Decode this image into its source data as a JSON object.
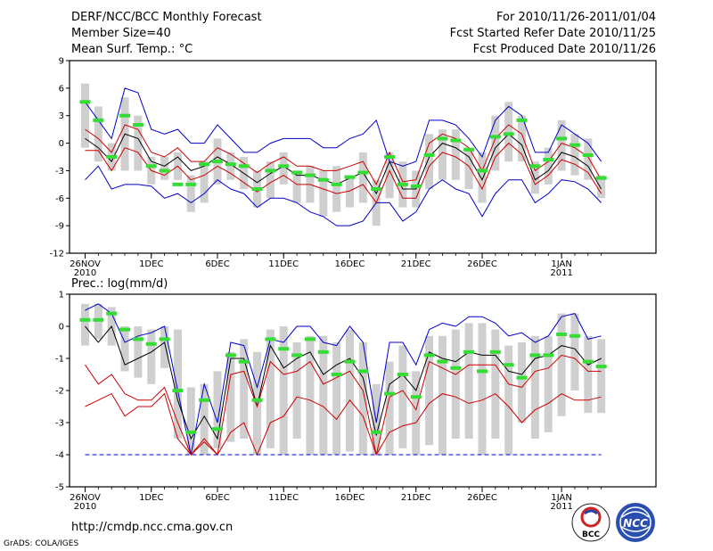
{
  "header": {
    "title": "DERF/NCC/BCC Monthly Forecast",
    "member_size": "Member Size=40",
    "variable": "Mean Surf. Temp.: °C",
    "period": "For 2010/11/26-2011/01/04",
    "started": "Fcst Started Refer Date 2010/11/25",
    "produced": "Fcst Produced Date 2010/11/26"
  },
  "precip_label": "Prec.: log(mm/d)",
  "footer": {
    "url": "http://cmdp.ncc.cma.gov.cn",
    "credit": "GrADS: COLA/IGES"
  },
  "logos": {
    "bcc": "BCC",
    "ncc": "NCC"
  },
  "colors": {
    "bar": "#cfcfcf",
    "green": "#33dd33",
    "envelope": "#0000cc",
    "spread": "#cc0000",
    "mean": "#000000"
  },
  "chart_data": [
    {
      "type": "line",
      "title": "Mean Surf. Temp.: °C",
      "x_tick_labels": [
        "26NOV",
        "1DEC",
        "6DEC",
        "11DEC",
        "16DEC",
        "21DEC",
        "26DEC",
        "1JAN"
      ],
      "x_tick_days": [
        0,
        5,
        10,
        15,
        20,
        25,
        30,
        36
      ],
      "x_sub_labels": [
        {
          "day": 0,
          "text": "2010"
        },
        {
          "day": 36,
          "text": "2011"
        }
      ],
      "ylim": [
        -12,
        9
      ],
      "yticks": [
        -12,
        -9,
        -6,
        -3,
        0,
        3,
        6,
        9
      ],
      "series": [
        {
          "name": "ensemble max",
          "color": "#0000cc",
          "values": [
            -4,
            -2.5,
            -5,
            -4.5,
            -4.5,
            -4.7,
            -6,
            -5.5,
            -6.5,
            -5.5,
            -4,
            -5,
            -5.5,
            -7,
            -6,
            -6,
            -6.5,
            -7.5,
            -8,
            -9,
            -9,
            -8.5,
            -6.5,
            -6.5,
            -8.5,
            -7.5,
            -5,
            -4,
            -5,
            -5.5,
            -8,
            -5.5,
            -4,
            -4,
            -6.5,
            -5.5,
            -4,
            -4.2,
            -5,
            -6.5
          ]
        },
        {
          "name": "upper spread",
          "color": "#0000cc",
          "values": [
            4.5,
            2.5,
            0.5,
            6,
            5.5,
            1.5,
            1,
            1.5,
            0,
            0,
            2,
            0.5,
            -1,
            -1,
            0,
            0.5,
            0.5,
            0.5,
            -0.5,
            -0.5,
            0.5,
            1,
            2.5,
            -2,
            -2.5,
            -2,
            2.5,
            2.5,
            2,
            0.5,
            -1.5,
            2.5,
            4,
            3,
            -1,
            -1,
            2,
            1,
            0,
            -2
          ]
        },
        {
          "name": "ensemble upper",
          "color": "#cc0000",
          "values": [
            1.5,
            0.5,
            -1,
            2,
            1.5,
            -1,
            -1.5,
            -0.5,
            -2,
            -2,
            -0.5,
            -1.2,
            -2.2,
            -3.2,
            -2.2,
            -1.5,
            -2.5,
            -2.5,
            -3,
            -3,
            -2.5,
            -2,
            -4.5,
            -1,
            -4.2,
            -4,
            0,
            1,
            0.5,
            -0.5,
            -3,
            0.5,
            2,
            1,
            -3,
            -2,
            0,
            -0.5,
            -1.5,
            -4
          ]
        },
        {
          "name": "ensemble mean",
          "color": "#000000",
          "values": [
            0.5,
            -0.5,
            -2,
            1,
            0.5,
            -2,
            -2.5,
            -1.5,
            -3,
            -2.5,
            -1.5,
            -2.3,
            -3.3,
            -4.3,
            -3.3,
            -2.5,
            -3.5,
            -3.5,
            -4,
            -4.5,
            -3.8,
            -3.2,
            -5.5,
            -2,
            -5,
            -5,
            -1.5,
            0,
            -0.5,
            -1.5,
            -4,
            -0.5,
            1,
            -0.2,
            -4,
            -3,
            -1,
            -1.5,
            -2.5,
            -5
          ]
        },
        {
          "name": "ensemble lower",
          "color": "#cc0000",
          "values": [
            -0.8,
            -0.8,
            -3,
            -0.5,
            -1,
            -3,
            -3.5,
            -2.5,
            -4,
            -3.5,
            -2.5,
            -3.3,
            -4.3,
            -5.3,
            -4.3,
            -3.5,
            -4.5,
            -4.5,
            -5,
            -5.5,
            -5.2,
            -4.5,
            -6.5,
            -3,
            -6,
            -6,
            -2.5,
            -1,
            -1.5,
            -2.5,
            -5,
            -1.5,
            0,
            -1.2,
            -4.5,
            -3.5,
            -1.8,
            -2.3,
            -3.2,
            -5.5
          ]
        }
      ],
      "bars": [
        [
          -0.5,
          6.5
        ],
        [
          -2,
          4
        ],
        [
          -3,
          0
        ],
        [
          -3,
          5
        ],
        [
          -3,
          3
        ],
        [
          -4.5,
          -1.5
        ],
        [
          -4,
          -1.5
        ],
        [
          -4,
          -1
        ],
        [
          -7.5,
          -3.5
        ],
        [
          -6.5,
          -2
        ],
        [
          -4.5,
          0.5
        ],
        [
          -4,
          -1
        ],
        [
          -5,
          -1.5
        ],
        [
          -7,
          -3
        ],
        [
          -6,
          -2
        ],
        [
          -4.5,
          -1
        ],
        [
          -6.5,
          -3
        ],
        [
          -6.5,
          -2.5
        ],
        [
          -8,
          -3
        ],
        [
          -7.5,
          -2.5
        ],
        [
          -7,
          -3.5
        ],
        [
          -6.5,
          -1
        ],
        [
          -9,
          -4
        ],
        [
          -6,
          -1
        ],
        [
          -7,
          -2
        ],
        [
          -7,
          -3
        ],
        [
          -5,
          1
        ],
        [
          -4,
          1.5
        ],
        [
          -4,
          1.5
        ],
        [
          -5,
          -0.5
        ],
        [
          -6.5,
          -1
        ],
        [
          -3,
          3
        ],
        [
          -2,
          4.5
        ],
        [
          -2,
          3
        ],
        [
          -5.5,
          -2
        ],
        [
          -4.5,
          -0.5
        ],
        [
          -3,
          2.5
        ],
        [
          -3.5,
          1
        ],
        [
          -4,
          0.5
        ],
        [
          -6,
          -3.5
        ]
      ],
      "markers": [
        4.5,
        2.5,
        -1.5,
        3,
        2,
        -2.5,
        -3,
        -4.5,
        -4.5,
        -2.3,
        -2,
        -2.3,
        -2.5,
        -5,
        -3,
        -2.5,
        -3.2,
        -3.5,
        -4,
        -4.5,
        -3.7,
        -3.2,
        -5,
        -1.5,
        -4.5,
        -4.7,
        -1.3,
        0.5,
        0.3,
        -0.7,
        -3,
        0.7,
        1,
        2.5,
        -2.5,
        -1.8,
        0.5,
        -0.2,
        -1.3,
        -3.8
      ]
    },
    {
      "type": "line",
      "title": "Prec.: log(mm/d)",
      "x_tick_labels": [
        "26NOV",
        "1DEC",
        "6DEC",
        "11DEC",
        "16DEC",
        "21DEC",
        "26DEC",
        "1JAN"
      ],
      "x_tick_days": [
        0,
        5,
        10,
        15,
        20,
        25,
        30,
        36
      ],
      "x_sub_labels": [
        {
          "day": 0,
          "text": "2010"
        },
        {
          "day": 36,
          "text": "2011"
        }
      ],
      "ylim": [
        -5,
        1
      ],
      "yticks": [
        -5,
        -4,
        -3,
        -2,
        -1,
        0,
        1
      ],
      "series": [
        {
          "name": "ensemble max",
          "color": "#0000cc",
          "values": [
            0.5,
            0.7,
            0.4,
            -0.5,
            -0.3,
            -0.2,
            0,
            -2,
            -4,
            -1.8,
            -3,
            -0.5,
            -0.6,
            -1.9,
            -0.4,
            -0.5,
            0,
            0,
            -0.5,
            -0.6,
            0,
            -0.5,
            -3,
            -0.5,
            -0.5,
            -1.2,
            -0.1,
            0.1,
            0,
            0.3,
            0.3,
            0.1,
            -0.3,
            -0.2,
            -0.5,
            -0.3,
            0.3,
            0.4,
            -0.4,
            -0.3
          ]
        },
        {
          "name": "ensemble mean",
          "color": "#000000",
          "values": [
            0,
            -0.5,
            0,
            -1.2,
            -1,
            -0.8,
            -0.5,
            -2.3,
            -3.5,
            -2.8,
            -3.5,
            -1,
            -1,
            -2.5,
            -0.6,
            -1.3,
            -1,
            -0.8,
            -1.5,
            -1.2,
            -1,
            -1.6,
            -3.4,
            -1.8,
            -1.5,
            -2,
            -0.8,
            -1,
            -1.1,
            -0.8,
            -0.9,
            -0.9,
            -1.4,
            -1.5,
            -1,
            -0.9,
            -0.6,
            -0.7,
            -1.2,
            -1
          ]
        },
        {
          "name": "upper spread",
          "color": "#cc0000",
          "values": [
            -1.2,
            -1.8,
            -1.5,
            -2.1,
            -2.3,
            -2.3,
            -1.9,
            -3,
            -4,
            -3.5,
            -4,
            -1.5,
            -1.4,
            -2.5,
            -1.1,
            -1.5,
            -1.4,
            -1.1,
            -1.8,
            -1.6,
            -1.4,
            -2,
            -4,
            -2.2,
            -2,
            -2.6,
            -1.1,
            -1.3,
            -1.5,
            -1.2,
            -1.2,
            -1.2,
            -1.8,
            -1.9,
            -1.4,
            -1.3,
            -0.9,
            -1,
            -1.4,
            -1.4
          ]
        },
        {
          "name": "ensemble lower",
          "color": "#cc0000",
          "values": [
            -2.5,
            -2.3,
            -2.1,
            -2.8,
            -2.5,
            -2.5,
            -2.1,
            -3.5,
            -4,
            -3.6,
            -4,
            -3.3,
            -3,
            -4,
            -3,
            -2.8,
            -2.2,
            -2.3,
            -2.5,
            -2.9,
            -2.3,
            -2.8,
            -4,
            -3.3,
            -3.1,
            -3,
            -2.4,
            -2.1,
            -2.2,
            -2.4,
            -2.3,
            -2.1,
            -2.5,
            -3,
            -2.6,
            -2.4,
            -2.1,
            -2.3,
            -2.3,
            -2.2
          ]
        },
        {
          "name": "floor",
          "color": "#0000cc",
          "values": [
            -4,
            -4,
            -4,
            -4,
            -4,
            -4,
            -4,
            -4,
            -4,
            -4,
            -4,
            -4,
            -4,
            -4,
            -4,
            -4,
            -4,
            -4,
            -4,
            -4,
            -4,
            -4,
            -4,
            -4,
            -4,
            -4,
            -4,
            -4,
            -4,
            -4,
            -4,
            -4,
            -4,
            -4,
            -4,
            -4,
            -4,
            -4,
            -4,
            -4
          ]
        }
      ],
      "bars": [
        [
          -0.6,
          0.7
        ],
        [
          -0.4,
          0.7
        ],
        [
          -0.6,
          0.6
        ],
        [
          -1.4,
          0
        ],
        [
          -1.6,
          0
        ],
        [
          -1.8,
          -0.1
        ],
        [
          -1.3,
          0
        ],
        [
          -3.5,
          -0.1
        ],
        [
          -4,
          -1.9
        ],
        [
          -4,
          -1.8
        ],
        [
          -3.8,
          -1.4
        ],
        [
          -3.6,
          -0.8
        ],
        [
          -3.5,
          -0.4
        ],
        [
          -4,
          -0.8
        ],
        [
          -3.8,
          -0.1
        ],
        [
          -4,
          0
        ],
        [
          -3.5,
          -0.5
        ],
        [
          -4,
          -0.3
        ],
        [
          -4,
          -0.3
        ],
        [
          -4,
          -0.5
        ],
        [
          -3.9,
          -0.1
        ],
        [
          -4,
          -0.5
        ],
        [
          -4,
          -1.8
        ],
        [
          -4,
          -1.1
        ],
        [
          -3.8,
          -0.6
        ],
        [
          -4,
          -1.4
        ],
        [
          -3.7,
          -0.3
        ],
        [
          -4,
          -0.3
        ],
        [
          -3.5,
          -0.1
        ],
        [
          -3.5,
          0.1
        ],
        [
          -4,
          0.1
        ],
        [
          -3.5,
          -0.1
        ],
        [
          -4,
          -0.6
        ],
        [
          -3,
          -0.5
        ],
        [
          -3.5,
          -0.3
        ],
        [
          -3.3,
          -0.3
        ],
        [
          -2.8,
          0.4
        ],
        [
          -2,
          0.4
        ],
        [
          -2.7,
          -0.3
        ],
        [
          -2.7,
          -0.4
        ]
      ],
      "markers": [
        0.2,
        0.2,
        0.4,
        -0.1,
        -0.4,
        -0.55,
        -0.4,
        -2,
        -3.3,
        -2.3,
        -3.2,
        -0.9,
        -1.1,
        -2.3,
        -0.4,
        -0.7,
        -0.9,
        -0.4,
        -0.8,
        -1.5,
        -1.1,
        -1.4,
        -3.3,
        -2.1,
        -1.5,
        -2.2,
        -0.9,
        -1.1,
        -1.3,
        -0.8,
        -1.4,
        -0.8,
        -1.2,
        -1.6,
        -0.9,
        -0.9,
        -0.25,
        -0.3,
        -1.1,
        -1.25
      ]
    }
  ]
}
